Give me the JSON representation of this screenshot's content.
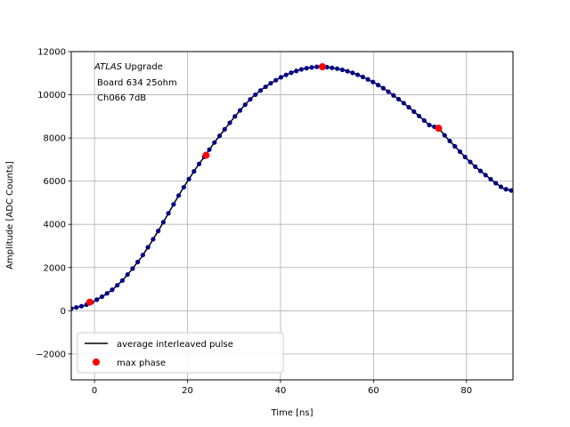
{
  "chart_data": {
    "type": "scatter",
    "title": "",
    "xlabel": "Time [ns]",
    "ylabel": "Amplitude [ADC Counts]",
    "xlim": [
      -5,
      90
    ],
    "ylim": [
      -3200,
      12000
    ],
    "grid": true,
    "x_ticks": [
      0,
      20,
      40,
      60,
      80
    ],
    "y_ticks": [
      -2000,
      0,
      2000,
      4000,
      6000,
      8000,
      10000,
      12000
    ],
    "annotation": {
      "italic_part": "ATLAS",
      "line1_rest": " Upgrade",
      "line2": "Board 634 25ohm",
      "line3": "Ch066 7dB"
    },
    "legend_position": "lower-left",
    "series": [
      {
        "name": "average interleaved pulse",
        "kind": "line+markers",
        "line_color": "#000000",
        "marker_color": "#00008b",
        "points": [
          [
            -5,
            100
          ],
          [
            -2,
            250
          ],
          [
            0,
            450
          ],
          [
            2,
            700
          ],
          [
            4,
            1000
          ],
          [
            6,
            1400
          ],
          [
            8,
            1900
          ],
          [
            10,
            2450
          ],
          [
            12,
            3100
          ],
          [
            14,
            3800
          ],
          [
            16,
            4550
          ],
          [
            18,
            5300
          ],
          [
            20,
            6000
          ],
          [
            22,
            6650
          ],
          [
            24,
            7250
          ],
          [
            26,
            7850
          ],
          [
            28,
            8400
          ],
          [
            30,
            8950
          ],
          [
            32,
            9450
          ],
          [
            34,
            9900
          ],
          [
            36,
            10250
          ],
          [
            38,
            10550
          ],
          [
            40,
            10800
          ],
          [
            42,
            11000
          ],
          [
            44,
            11150
          ],
          [
            46,
            11250
          ],
          [
            48,
            11300
          ],
          [
            49,
            11300
          ],
          [
            50,
            11280
          ],
          [
            52,
            11220
          ],
          [
            54,
            11120
          ],
          [
            56,
            10980
          ],
          [
            58,
            10800
          ],
          [
            60,
            10580
          ],
          [
            62,
            10320
          ],
          [
            64,
            10020
          ],
          [
            66,
            9700
          ],
          [
            68,
            9350
          ],
          [
            70,
            8980
          ],
          [
            72,
            8600
          ],
          [
            74,
            8450
          ],
          [
            76,
            7950
          ],
          [
            78,
            7500
          ],
          [
            80,
            7050
          ],
          [
            82,
            6650
          ],
          [
            84,
            6300
          ],
          [
            86,
            5950
          ],
          [
            88,
            5650
          ],
          [
            90,
            5550
          ]
        ]
      },
      {
        "name": "max phase",
        "kind": "markers",
        "marker_color": "#ff0000",
        "points": [
          [
            -1,
            400
          ],
          [
            24,
            7200
          ],
          [
            49,
            11300
          ],
          [
            74,
            8450
          ]
        ]
      }
    ]
  }
}
